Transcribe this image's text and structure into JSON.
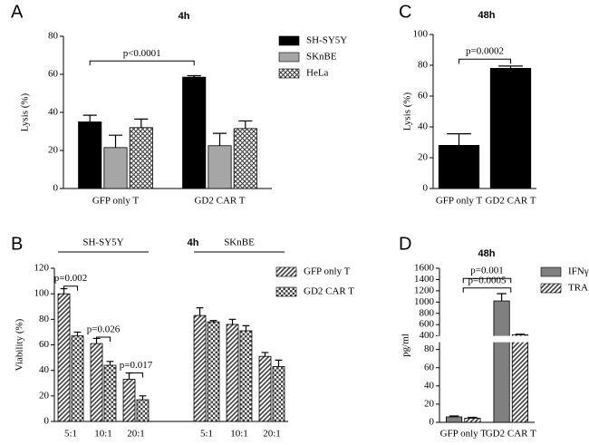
{
  "chart_data": [
    {
      "type": "bar",
      "panel_label": "A",
      "title": "4h",
      "ylabel": "Lysis (%)",
      "categories": [
        "GFP only T",
        "GD2 CAR T"
      ],
      "series": [
        {
          "name": "SH-SY5Y",
          "color": "#000000",
          "pattern": "solid",
          "values": [
            35,
            58.5
          ],
          "errors": [
            3.5,
            0.8
          ]
        },
        {
          "name": "SKnBE",
          "color": "#a6a6a6",
          "pattern": "solid",
          "values": [
            21.5,
            22.5
          ],
          "errors": [
            6.5,
            6.5
          ]
        },
        {
          "name": "HeLa",
          "color": "#404040",
          "pattern": "crosshatch",
          "values": [
            32,
            31.5
          ],
          "errors": [
            4.5,
            4
          ]
        }
      ],
      "ylim": [
        0,
        80
      ],
      "yticks": [
        0,
        20,
        40,
        60,
        80
      ],
      "annotations": [
        "p<0.0001"
      ],
      "legend": "right"
    },
    {
      "type": "bar",
      "panel_label": "C",
      "title": "48h",
      "ylabel": "Lysis (%)",
      "categories": [
        "GFP only T",
        "GD2 CAR T"
      ],
      "series": [
        {
          "color": "#000000",
          "pattern": "solid",
          "values": [
            28,
            78
          ],
          "errors": [
            7.5,
            1.5
          ]
        }
      ],
      "ylim": [
        0,
        100
      ],
      "yticks": [
        0,
        20,
        40,
        60,
        80,
        100
      ],
      "annotations": [
        "p=0.0002"
      ]
    },
    {
      "type": "bar",
      "panel_label": "B",
      "title": "4h",
      "ylabel": "Viability (%)",
      "group_labels": [
        "SH-SY5Y",
        "SKnBE"
      ],
      "categories": [
        "5:1",
        "10:1",
        "20:1",
        "5:1",
        "10:1",
        "20:1"
      ],
      "series": [
        {
          "name": "GFP only T",
          "color": "#404040",
          "pattern": "hatch",
          "values": [
            100,
            61,
            33,
            83,
            76,
            51
          ],
          "errors": [
            4,
            4,
            5,
            6,
            4,
            3
          ]
        },
        {
          "name": "GD2 CAR T",
          "color": "#404040",
          "pattern": "checker",
          "values": [
            67,
            44,
            17,
            78,
            71,
            43
          ],
          "errors": [
            3,
            3,
            3,
            1,
            4,
            5
          ]
        }
      ],
      "ylim": [
        0,
        120
      ],
      "yticks": [
        0,
        20,
        40,
        60,
        80,
        100,
        120
      ],
      "annotations": [
        "p=0.002",
        "p=0.026",
        "p=0.017"
      ],
      "legend": "right"
    },
    {
      "type": "bar",
      "panel_label": "D",
      "title": "48h",
      "ylabel": "pg/ml",
      "categories": [
        "GFP only T",
        "GD2 CAR T"
      ],
      "series": [
        {
          "name": "IFNγ",
          "color": "#808080",
          "pattern": "solid",
          "values": [
            6,
            1020
          ],
          "errors": [
            1,
            130
          ]
        },
        {
          "name": "TRAIL",
          "color": "#404040",
          "pattern": "hatch",
          "values": [
            4.5,
            420
          ],
          "errors": [
            1,
            10
          ]
        }
      ],
      "ylim": [
        0,
        1600
      ],
      "axis_break": [
        88,
        400
      ],
      "yticks": [
        0,
        20,
        40,
        60,
        80,
        400,
        600,
        800,
        1000,
        1200,
        1400,
        1600
      ],
      "annotations": [
        "p=0.0005",
        "p=0.001"
      ],
      "legend": "right"
    }
  ]
}
